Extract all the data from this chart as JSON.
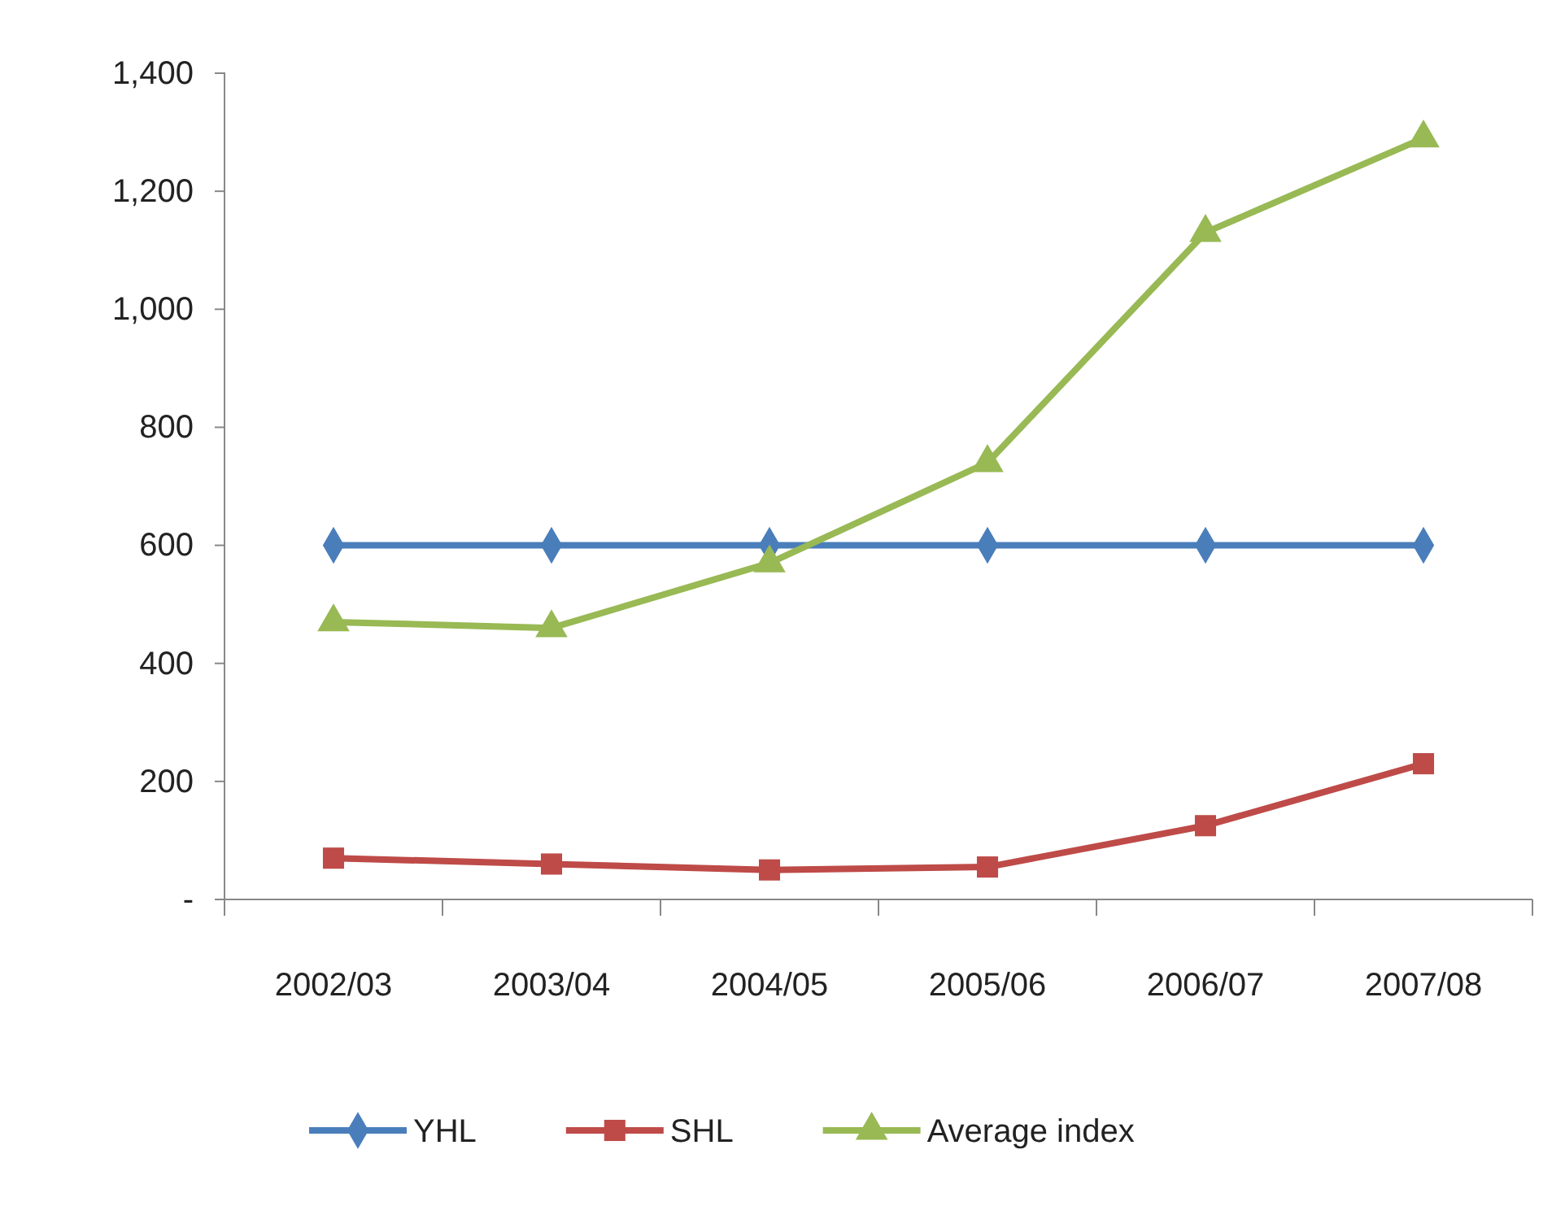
{
  "chart_data": {
    "type": "line",
    "categories": [
      "2002/03",
      "2003/04",
      "2004/05",
      "2005/06",
      "2006/07",
      "2007/08"
    ],
    "series": [
      {
        "name": "YHL",
        "color": "#4a7ebb",
        "marker": "diamond",
        "values": [
          600,
          600,
          600,
          600,
          600,
          600
        ]
      },
      {
        "name": "SHL",
        "color": "#be4b48",
        "marker": "square",
        "values": [
          70,
          60,
          50,
          55,
          125,
          230
        ]
      },
      {
        "name": "Average index",
        "color": "#98b954",
        "marker": "triangle",
        "values": [
          470,
          460,
          570,
          740,
          1130,
          1290
        ]
      }
    ],
    "ylim": [
      0,
      1400
    ],
    "yticks": [
      {
        "value": 0,
        "label": "-"
      },
      {
        "value": 200,
        "label": "200"
      },
      {
        "value": 400,
        "label": "400"
      },
      {
        "value": 600,
        "label": "600"
      },
      {
        "value": 800,
        "label": "800"
      },
      {
        "value": 1000,
        "label": "1,000"
      },
      {
        "value": 1200,
        "label": "1,200"
      },
      {
        "value": 1400,
        "label": "1,400"
      }
    ],
    "grid": false,
    "legend": "bottom",
    "line_style": "solid"
  }
}
